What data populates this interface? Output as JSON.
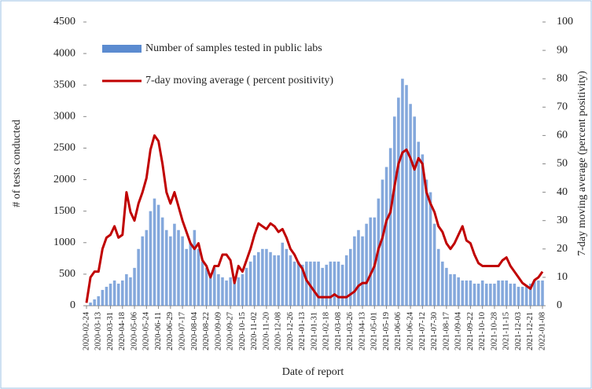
{
  "chart_data": {
    "type": "bar-line",
    "x_label": "Date of report",
    "y_label": "# of tests conducted",
    "y2_label": "7-day moving average (percent positivity)",
    "categories": [
      "2020-02-24",
      null,
      null,
      "2020-03-13",
      null,
      null,
      "2020-03-31",
      null,
      null,
      "2020-04-18",
      null,
      null,
      "2020-05-06",
      null,
      null,
      "2020-05-24",
      null,
      null,
      "2020-06-11",
      null,
      null,
      "2020-06-29",
      null,
      null,
      "2020-07-17",
      null,
      null,
      "2020-08-04",
      null,
      null,
      "2020-08-22",
      null,
      null,
      "2020-09-09",
      null,
      null,
      "2020-09-27",
      null,
      null,
      "2020-10-15",
      null,
      null,
      "2020-11-02",
      null,
      null,
      "2020-11-20",
      null,
      null,
      "2020-12-08",
      null,
      null,
      "2020-12-26",
      null,
      null,
      "2021-01-13",
      null,
      null,
      "2021-01-31",
      null,
      null,
      "2021-02-18",
      null,
      null,
      "2021-03-08",
      null,
      null,
      "2021-03-26",
      null,
      null,
      "2021-04-13",
      null,
      null,
      "2021-05-01",
      null,
      null,
      "2021-05-19",
      null,
      null,
      "2021-06-06",
      null,
      null,
      "2021-06-24",
      null,
      null,
      "2021-07-12",
      null,
      null,
      "2021-07-30",
      null,
      null,
      "2021-08-17",
      null,
      null,
      "2021-09-04",
      null,
      null,
      "2021-09-22",
      null,
      null,
      "2021-10-10",
      null,
      null,
      "2021-10-28",
      null,
      null,
      "2021-11-15",
      null,
      null,
      "2021-12-03",
      null,
      null,
      "2021-12-21",
      null,
      null,
      "2022-01-08"
    ],
    "series": [
      {
        "name": "Number of samples tested in public labs",
        "type": "bar",
        "color": "#5b8bd0",
        "values": [
          0,
          50,
          100,
          150,
          250,
          300,
          350,
          400,
          350,
          400,
          500,
          450,
          600,
          900,
          1100,
          1200,
          1500,
          1700,
          1600,
          1400,
          1200,
          1100,
          1300,
          1200,
          1100,
          900,
          1000,
          1200,
          900,
          700,
          600,
          500,
          600,
          500,
          450,
          400,
          450,
          400,
          450,
          500,
          600,
          700,
          800,
          850,
          900,
          900,
          850,
          800,
          800,
          1000,
          900,
          800,
          700,
          700,
          650,
          700,
          700,
          700,
          700,
          600,
          650,
          700,
          700,
          700,
          650,
          800,
          900,
          1100,
          1200,
          1100,
          1300,
          1400,
          1400,
          1700,
          2000,
          2200,
          2500,
          3000,
          3300,
          3600,
          3500,
          3200,
          3000,
          2600,
          2400,
          2000,
          1800,
          1300,
          900,
          700,
          600,
          500,
          500,
          450,
          400,
          400,
          400,
          350,
          350,
          400,
          350,
          350,
          350,
          400,
          400,
          400,
          350,
          350,
          300,
          300,
          300,
          350,
          400,
          400,
          400
        ]
      },
      {
        "name": "7-day moving average ( percent positivity)",
        "type": "line",
        "axis": "y2",
        "color": "#c00000",
        "values": [
          1,
          10,
          12,
          12,
          20,
          24,
          25,
          28,
          24,
          25,
          40,
          33,
          30,
          36,
          40,
          45,
          55,
          60,
          58,
          50,
          40,
          36,
          40,
          35,
          30,
          26,
          22,
          20,
          22,
          16,
          14,
          10,
          14,
          14,
          18,
          18,
          16,
          8,
          14,
          12,
          16,
          20,
          25,
          29,
          28,
          27,
          29,
          28,
          26,
          27,
          24,
          20,
          18,
          15,
          13,
          9,
          7,
          5,
          3,
          3,
          3,
          3,
          4,
          3,
          3,
          3,
          4,
          5,
          7,
          8,
          8,
          11,
          14,
          20,
          24,
          30,
          33,
          42,
          50,
          54,
          55,
          52,
          48,
          52,
          50,
          40,
          36,
          33,
          28,
          26,
          22,
          20,
          22,
          25,
          28,
          23,
          22,
          18,
          15,
          14,
          14,
          14,
          14,
          14,
          16,
          17,
          14,
          12,
          10,
          8,
          7,
          6,
          9,
          10,
          12
        ]
      }
    ],
    "ylim": [
      0,
      4500
    ],
    "yticks": [
      0,
      500,
      1000,
      1500,
      2000,
      2500,
      3000,
      3500,
      4000,
      4500
    ],
    "y2lim": [
      0,
      100
    ],
    "y2ticks": [
      0,
      10,
      20,
      30,
      40,
      50,
      60,
      70,
      80,
      90,
      100
    ],
    "legend": "top-left",
    "grid": false
  }
}
